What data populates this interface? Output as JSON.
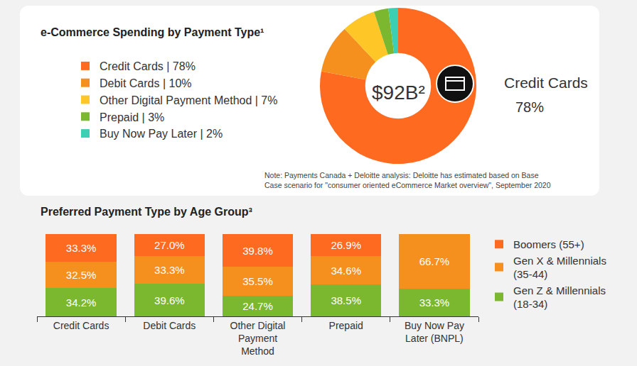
{
  "chart_data": [
    {
      "type": "pie",
      "title": "e-Commerce Spending by Payment Type¹",
      "categories": [
        "Credit Cards | 78%",
        "Debit Cards | 10%",
        "Other Digital Payment Method | 7%",
        "Prepaid | 3%",
        "Buy Now Pay Later | 2%"
      ],
      "values": [
        78,
        10,
        7,
        3,
        2
      ],
      "colors": [
        "#ff6a21",
        "#f5901e",
        "#ffc627",
        "#7cb82f",
        "#3ccfb4"
      ],
      "legend": "left",
      "data_labels": false,
      "annotations": [
        "$92B²",
        "Credit Cards",
        "78%",
        "Note: Payments Canada + Deloitte analysis: Deloitte has estimated based on Base Case scenario for \"consumer oriented eCommerce Market overview\", September 2020"
      ]
    },
    {
      "type": "bar",
      "title": "Preferred Payment Type by Age Group³",
      "categories": [
        "Credit Cards",
        "Debit Cards",
        "Other Digital Payment Method",
        "Prepaid",
        "Buy Now Pay Later (BNPL)"
      ],
      "series": [
        {
          "name": "Boomers (55+)",
          "color": "#ff6a21",
          "values": [
            33.3,
            27.0,
            39.8,
            26.9,
            null
          ],
          "value_labels": [
            "33.3%",
            "27.0%",
            "39.8%",
            "26.9%",
            null
          ]
        },
        {
          "name": "Gen X & Millennials (35-44)",
          "color": "#f5901e",
          "values": [
            32.5,
            33.3,
            35.5,
            34.6,
            66.7
          ],
          "value_labels": [
            "32.5%",
            "33.3%",
            "35.5%",
            "34.6%",
            "66.7%"
          ]
        },
        {
          "name": "Gen Z & Millennials (18-34)",
          "color": "#7cb82f",
          "values": [
            34.2,
            39.6,
            24.7,
            38.5,
            33.3
          ],
          "value_labels": [
            "34.2%",
            "39.6%",
            "24.7%",
            "38.5%",
            "33.3%"
          ]
        }
      ],
      "stacked": true,
      "data_labels": true,
      "ylim": [
        0,
        100
      ],
      "tick_labels": "x",
      "grid": false,
      "legend": "right"
    }
  ]
}
